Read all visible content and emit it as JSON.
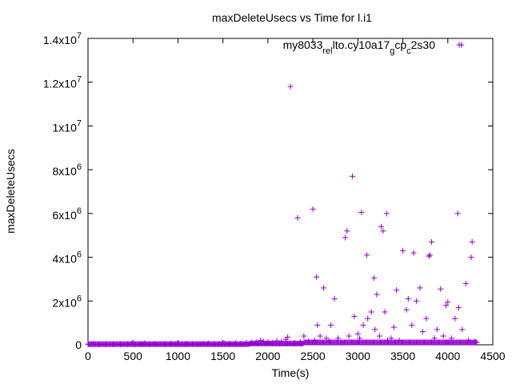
{
  "chart_data": {
    "type": "scatter",
    "title": "maxDeleteUsecs vs Time for l.i1",
    "xlabel": "Time(s)",
    "ylabel": "maxDeleteUsecs",
    "xlim": [
      0,
      4500
    ],
    "ylim": [
      0,
      14000000
    ],
    "x_ticks": [
      {
        "value": 0,
        "label": "0"
      },
      {
        "value": 500,
        "label": "500"
      },
      {
        "value": 1000,
        "label": "1000"
      },
      {
        "value": 1500,
        "label": "1500"
      },
      {
        "value": 2000,
        "label": "2000"
      },
      {
        "value": 2500,
        "label": "2500"
      },
      {
        "value": 3000,
        "label": "3000"
      },
      {
        "value": 3500,
        "label": "3500"
      },
      {
        "value": 4000,
        "label": "4000"
      },
      {
        "value": 4500,
        "label": "4500"
      }
    ],
    "y_ticks": [
      {
        "value": 0,
        "mant": "0",
        "exp": ""
      },
      {
        "value": 2000000,
        "mant": "2x10",
        "exp": "6"
      },
      {
        "value": 4000000,
        "mant": "4x10",
        "exp": "6"
      },
      {
        "value": 6000000,
        "mant": "6x10",
        "exp": "6"
      },
      {
        "value": 8000000,
        "mant": "8x10",
        "exp": "6"
      },
      {
        "value": 10000000,
        "mant": "1x10",
        "exp": "7"
      },
      {
        "value": 12000000,
        "mant": "1.2x10",
        "exp": "7"
      },
      {
        "value": 14000000,
        "mant": "1.4x10",
        "exp": "7"
      }
    ],
    "legend": {
      "position": "top-right",
      "label_parts": [
        {
          "text": "my8033",
          "sub": false
        },
        {
          "text": "rel",
          "sub": true
        },
        {
          "text": "lto.cy10a17",
          "sub": false
        },
        {
          "text": "g",
          "sub": true
        },
        {
          "text": "cp",
          "sub": false
        },
        {
          "text": "c",
          "sub": true
        },
        {
          "text": "2s30",
          "sub": false
        }
      ],
      "marker_color": "#9400d3"
    },
    "grid": false,
    "series": [
      {
        "color": "#9400d3",
        "marker": "plus",
        "points": [
          [
            10,
            20000
          ],
          [
            60,
            40000
          ],
          [
            120,
            15000
          ],
          [
            200,
            30000
          ],
          [
            280,
            20000
          ],
          [
            360,
            25000
          ],
          [
            440,
            35000
          ],
          [
            480,
            60000
          ],
          [
            520,
            30000
          ],
          [
            580,
            40000
          ],
          [
            630,
            80000
          ],
          [
            680,
            30000
          ],
          [
            740,
            50000
          ],
          [
            800,
            40000
          ],
          [
            860,
            30000
          ],
          [
            920,
            60000
          ],
          [
            980,
            40000
          ],
          [
            1040,
            30000
          ],
          [
            1100,
            50000
          ],
          [
            1160,
            40000
          ],
          [
            1220,
            30000
          ],
          [
            1280,
            50000
          ],
          [
            1340,
            60000
          ],
          [
            1400,
            40000
          ],
          [
            1460,
            50000
          ],
          [
            1520,
            70000
          ],
          [
            1580,
            60000
          ],
          [
            1640,
            80000
          ],
          [
            1700,
            60000
          ],
          [
            1760,
            90000
          ],
          [
            1820,
            100000
          ],
          [
            1870,
            120000
          ],
          [
            1920,
            200000
          ],
          [
            1950,
            150000
          ],
          [
            2000,
            120000
          ],
          [
            2050,
            100000
          ],
          [
            2100,
            180000
          ],
          [
            2150,
            150000
          ],
          [
            2200,
            250000
          ],
          [
            2220,
            350000
          ],
          [
            2250,
            11800000
          ],
          [
            2300,
            80000
          ],
          [
            2330,
            5800000
          ],
          [
            2360,
            120000
          ],
          [
            2400,
            400000
          ],
          [
            2450,
            150000
          ],
          [
            2500,
            6200000
          ],
          [
            2520,
            200000
          ],
          [
            2540,
            3100000
          ],
          [
            2550,
            900000
          ],
          [
            2580,
            400000
          ],
          [
            2620,
            2600000
          ],
          [
            2650,
            300000
          ],
          [
            2680,
            150000
          ],
          [
            2700,
            900000
          ],
          [
            2740,
            2100000
          ],
          [
            2780,
            300000
          ],
          [
            2820,
            100000
          ],
          [
            2860,
            4900000
          ],
          [
            2880,
            5200000
          ],
          [
            2900,
            400000
          ],
          [
            2940,
            7700000
          ],
          [
            2960,
            1300000
          ],
          [
            3000,
            500000
          ],
          [
            3020,
            300000
          ],
          [
            3040,
            6050000
          ],
          [
            3060,
            900000
          ],
          [
            3100,
            4100000
          ],
          [
            3110,
            1200000
          ],
          [
            3150,
            1500000
          ],
          [
            3180,
            3050000
          ],
          [
            3190,
            700000
          ],
          [
            3210,
            2300000
          ],
          [
            3240,
            400000
          ],
          [
            3260,
            5400000
          ],
          [
            3280,
            5200000
          ],
          [
            3300,
            1500000
          ],
          [
            3320,
            6000000
          ],
          [
            3330,
            200000
          ],
          [
            3370,
            300000
          ],
          [
            3400,
            800000
          ],
          [
            3430,
            2500000
          ],
          [
            3460,
            200000
          ],
          [
            3500,
            4300000
          ],
          [
            3540,
            1600000
          ],
          [
            3560,
            2100000
          ],
          [
            3600,
            900000
          ],
          [
            3620,
            4200000
          ],
          [
            3650,
            2000000
          ],
          [
            3690,
            2600000
          ],
          [
            3720,
            600000
          ],
          [
            3760,
            1200000
          ],
          [
            3790,
            4050000
          ],
          [
            3800,
            4100000
          ],
          [
            3820,
            4700000
          ],
          [
            3850,
            300000
          ],
          [
            3880,
            700000
          ],
          [
            3920,
            2550000
          ],
          [
            3950,
            400000
          ],
          [
            3980,
            1800000
          ],
          [
            4000,
            1950000
          ],
          [
            4040,
            300000
          ],
          [
            4080,
            1200000
          ],
          [
            4110,
            6000000
          ],
          [
            4120,
            1700000
          ],
          [
            4150,
            13700000
          ],
          [
            4160,
            700000
          ],
          [
            4200,
            2800000
          ],
          [
            4230,
            200000
          ],
          [
            4260,
            4000000
          ],
          [
            4270,
            4700000
          ],
          [
            4300,
            150000
          ],
          [
            4320,
            100000
          ]
        ]
      }
    ]
  }
}
